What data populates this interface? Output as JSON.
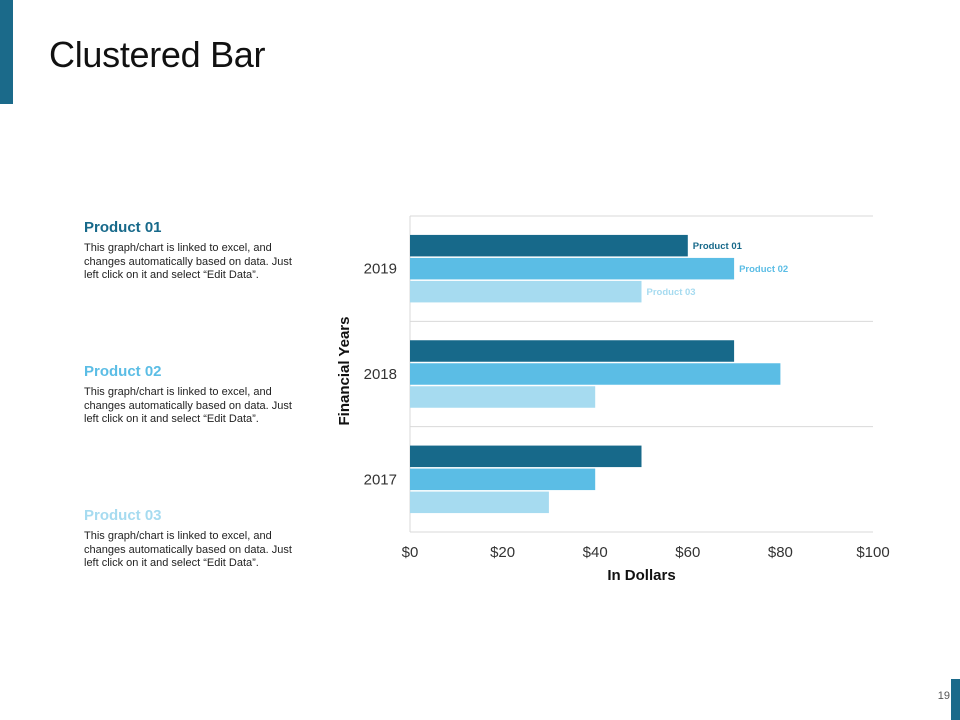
{
  "slide": {
    "title": "Clustered Bar",
    "page_number": "19",
    "accent_color": "#1b6a8a"
  },
  "products": [
    {
      "heading": "Product 01",
      "color": "#17698a",
      "description": "This graph/chart is linked to excel, and changes automatically based on data. Just left click on it and select “Edit Data”."
    },
    {
      "heading": "Product 02",
      "color": "#5bbde5",
      "description": "This graph/chart is linked to excel, and changes automatically based on data. Just left click on it and select “Edit Data”."
    },
    {
      "heading": "Product 03",
      "color": "#a6dbf0",
      "description": "This graph/chart is linked to excel, and changes automatically based on data. Just left click on it and select “Edit Data”."
    }
  ],
  "chart_data": {
    "type": "bar",
    "orientation": "horizontal",
    "title": "",
    "xlabel": "In Dollars",
    "ylabel": "Financial Years",
    "categories": [
      "2019",
      "2018",
      "2017"
    ],
    "xlim": [
      0,
      100
    ],
    "xticks": [
      0,
      20,
      40,
      60,
      80,
      100
    ],
    "xtick_labels": [
      "$0",
      "$20",
      "$40",
      "$60",
      "$80",
      "$100"
    ],
    "grid": true,
    "series": [
      {
        "name": "Product 01",
        "color": "#17698a",
        "values": [
          60,
          70,
          50
        ]
      },
      {
        "name": "Product 02",
        "color": "#5bbde5",
        "values": [
          70,
          80,
          40
        ]
      },
      {
        "name": "Product 03",
        "color": "#a6dbf0",
        "values": [
          50,
          40,
          30
        ]
      }
    ],
    "data_labels": [
      {
        "text": "Product 01",
        "series": 0,
        "category": "2019"
      },
      {
        "text": "Product 02",
        "series": 1,
        "category": "2019"
      },
      {
        "text": "Product 03",
        "series": 2,
        "category": "2019"
      }
    ]
  }
}
